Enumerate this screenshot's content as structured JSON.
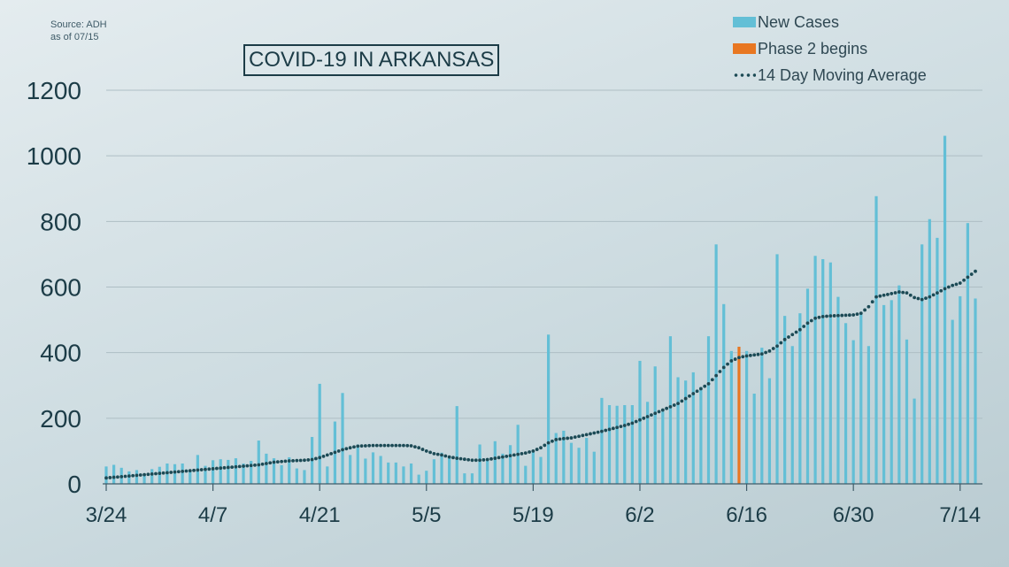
{
  "source": {
    "line1": "Source: ADH",
    "line2": "as of 07/15"
  },
  "colors": {
    "new_cases": "#63bfd6",
    "phase2": "#e87722",
    "moving_average": "#1c4a55",
    "axis_text": "#1c3c47"
  },
  "legend": {
    "new_cases": "New Cases",
    "phase2": "Phase 2 begins",
    "moving_average": "14 Day Moving Average"
  },
  "chart_data": {
    "type": "bar",
    "title": "COVID-19 IN ARKANSAS",
    "xlabel": "",
    "ylabel": "",
    "ylim": [
      0,
      1200
    ],
    "yticks": [
      0,
      200,
      400,
      600,
      800,
      1000,
      1200
    ],
    "xtick_labels": [
      "3/24",
      "4/7",
      "4/21",
      "5/5",
      "5/19",
      "6/2",
      "6/16",
      "6/30",
      "7/14"
    ],
    "start_date": "3/24",
    "grid": true,
    "legend_position": "top-right",
    "phase2_date": "6/15",
    "series": [
      {
        "name": "New Cases",
        "type": "bar",
        "values": [
          53,
          58,
          49,
          38,
          42,
          27,
          45,
          52,
          62,
          60,
          62,
          42,
          88,
          55,
          72,
          75,
          73,
          78,
          62,
          70,
          132,
          92,
          78,
          57,
          81,
          47,
          42,
          143,
          305,
          53,
          190,
          277,
          88,
          120,
          77,
          96,
          85,
          65,
          65,
          53,
          62,
          28,
          40,
          75,
          95,
          85,
          237,
          32,
          32,
          120,
          78,
          130,
          92,
          118,
          180,
          55,
          100,
          82,
          455,
          155,
          162,
          125,
          110,
          140,
          98,
          262,
          240,
          238,
          240,
          240,
          375,
          250,
          358,
          220,
          450,
          325,
          315,
          340,
          295,
          450,
          730,
          548,
          405,
          418,
          405,
          275,
          415,
          322,
          700,
          512,
          420,
          520,
          595,
          695,
          685,
          675,
          570,
          490,
          438,
          520,
          420,
          877,
          545,
          560,
          605,
          440,
          260,
          730,
          807,
          750,
          1061,
          500,
          572,
          795,
          565
        ]
      },
      {
        "name": "14 Day Moving Average",
        "type": "line",
        "values": [
          18,
          20,
          22,
          24,
          26,
          28,
          30,
          32,
          34,
          36,
          38,
          40,
          42,
          44,
          46,
          48,
          50,
          52,
          54,
          56,
          58,
          62,
          66,
          68,
          70,
          71,
          72,
          74,
          80,
          88,
          96,
          104,
          110,
          115,
          116,
          117,
          117,
          117,
          117,
          117,
          116,
          110,
          100,
          92,
          88,
          82,
          78,
          75,
          72,
          72,
          74,
          78,
          82,
          86,
          90,
          94,
          100,
          110,
          125,
          135,
          138,
          140,
          145,
          150,
          155,
          160,
          166,
          172,
          178,
          185,
          195,
          205,
          215,
          225,
          235,
          245,
          260,
          275,
          290,
          305,
          330,
          355,
          375,
          385,
          390,
          393,
          396,
          405,
          420,
          440,
          455,
          470,
          490,
          505,
          510,
          512,
          513,
          514,
          515,
          520,
          540,
          570,
          575,
          580,
          585,
          582,
          568,
          562,
          570,
          582,
          595,
          605,
          612,
          630,
          648
        ]
      }
    ]
  }
}
